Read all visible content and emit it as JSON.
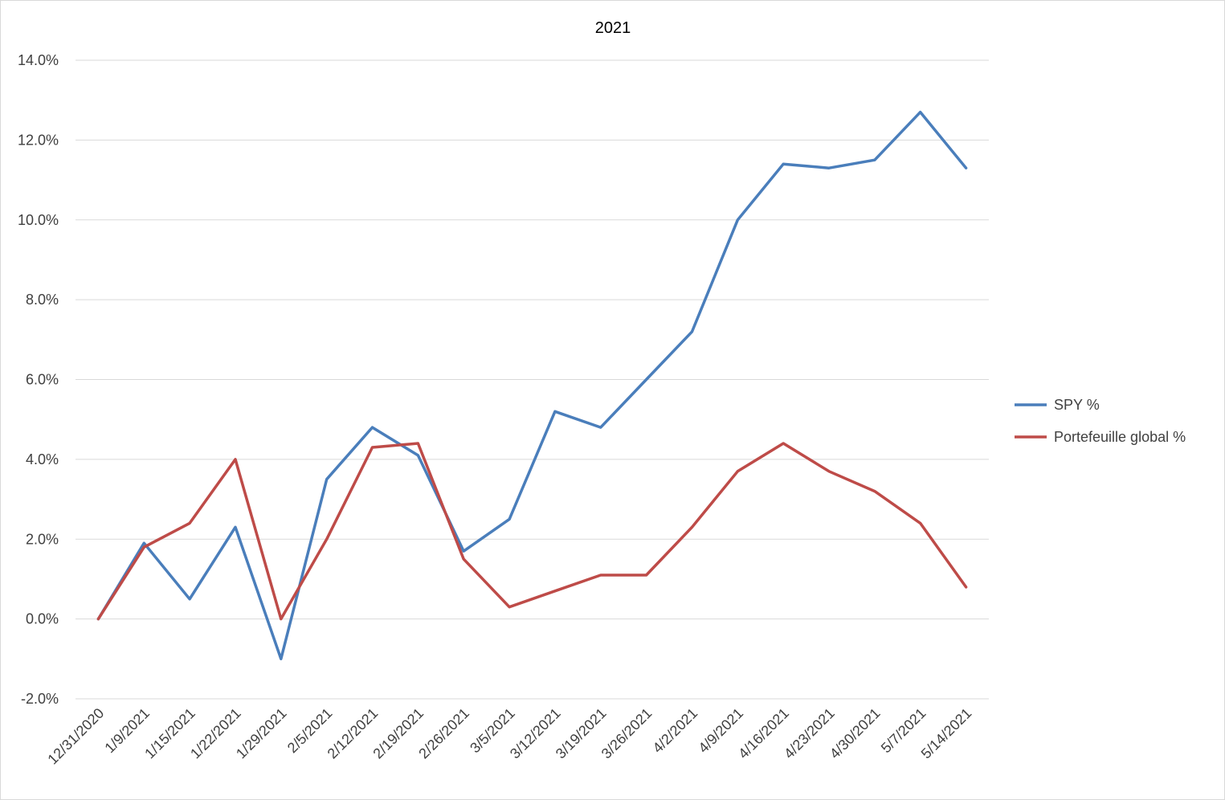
{
  "chart_data": {
    "type": "line",
    "title": "2021",
    "xlabel": "",
    "ylabel": "",
    "categories": [
      "12/31/2020",
      "1/9/2021",
      "1/15/2021",
      "1/22/2021",
      "1/29/2021",
      "2/5/2021",
      "2/12/2021",
      "2/19/2021",
      "2/26/2021",
      "3/5/2021",
      "3/12/2021",
      "3/19/2021",
      "3/26/2021",
      "4/2/2021",
      "4/9/2021",
      "4/16/2021",
      "4/23/2021",
      "4/30/2021",
      "5/7/2021",
      "5/14/2021"
    ],
    "ylim": [
      -0.02,
      0.14
    ],
    "yticks": [
      -0.02,
      0.0,
      0.02,
      0.04,
      0.06,
      0.08,
      0.1,
      0.12,
      0.14
    ],
    "ytick_labels": [
      "-2.0%",
      "0.0%",
      "2.0%",
      "4.0%",
      "6.0%",
      "8.0%",
      "10.0%",
      "12.0%",
      "14.0%"
    ],
    "grid": true,
    "legend_position": "right",
    "series": [
      {
        "name": "SPY %",
        "color": "#4a7ebb",
        "values": [
          0.0,
          0.019,
          0.005,
          0.023,
          -0.01,
          0.035,
          0.048,
          0.041,
          0.017,
          0.025,
          0.052,
          0.048,
          0.06,
          0.072,
          0.1,
          0.114,
          0.113,
          0.115,
          0.127,
          0.113
        ]
      },
      {
        "name": "Portefeuille global %",
        "color": "#be4b48",
        "values": [
          0.0,
          0.018,
          0.024,
          0.04,
          0.0,
          0.02,
          0.043,
          0.044,
          0.015,
          0.003,
          0.007,
          0.011,
          0.011,
          0.023,
          0.037,
          0.044,
          0.037,
          0.032,
          0.024,
          0.008
        ]
      }
    ]
  }
}
